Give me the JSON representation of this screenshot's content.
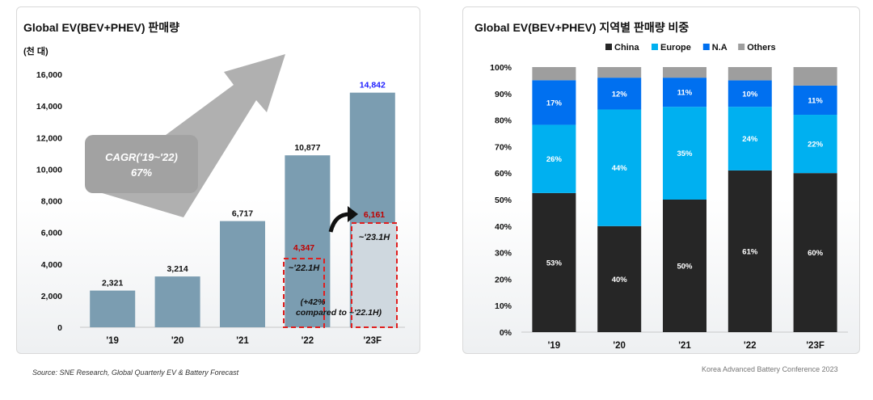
{
  "left_chart": {
    "title": "Global EV(BEV+PHEV) 판매량",
    "unit": "(천 대)",
    "cagr_label_1": "CAGR('19~'22)",
    "cagr_label_2": "67%",
    "h1_22_value": "4,347",
    "h1_22_label": "~'22.1H",
    "h1_23_value": "6,161",
    "h1_23_label": "~'23.1H",
    "growth_note_1": "(+42%",
    "growth_note_2": "compared to ~'22.1H)"
  },
  "right_chart": {
    "title": "Global EV(BEV+PHEV) 지역별 판매량 비중"
  },
  "source": "Source: SNE Research, Global Quarterly EV & Battery Forecast",
  "conference": "Korea Advanced Battery Conference 2023",
  "colors": {
    "bar": "#7b9db1",
    "forecast_value": "#1f1fff",
    "h1_value": "#c00000",
    "china": "#262626",
    "europe": "#00b0f0",
    "na": "#0070f0",
    "others": "#9e9e9e",
    "dashed_box": "#e01f1f"
  },
  "chart_data": [
    {
      "type": "bar",
      "categories": [
        "'19",
        "'20",
        "'21",
        "'22",
        "'23F"
      ],
      "values": [
        2321,
        3214,
        6717,
        10877,
        14842
      ],
      "value_labels": [
        "2,321",
        "3,214",
        "6,717",
        "10,877",
        "14,842"
      ],
      "ylim": [
        0,
        16000
      ],
      "yticks": [
        0,
        2000,
        4000,
        6000,
        8000,
        10000,
        12000,
        14000,
        16000
      ],
      "ytick_labels": [
        "0",
        "2,000",
        "4,000",
        "6,000",
        "8,000",
        "10,000",
        "12,000",
        "14,000",
        "16,000"
      ],
      "annotations": [
        {
          "category": "'22",
          "value": 4347
        },
        {
          "category": "'23F",
          "value": 6161
        }
      ],
      "grid": false
    },
    {
      "type": "bar",
      "stacked": true,
      "categories": [
        "'19",
        "'20",
        "'21",
        "'22",
        "'23F"
      ],
      "series": [
        {
          "name": "China",
          "values": [
            53,
            40,
            50,
            61,
            60
          ],
          "labels": [
            "53%",
            "40%",
            "50%",
            "61%",
            "60%"
          ]
        },
        {
          "name": "Europe",
          "values": [
            26,
            44,
            35,
            24,
            22
          ],
          "labels": [
            "26%",
            "44%",
            "35%",
            "24%",
            "22%"
          ]
        },
        {
          "name": "N.A",
          "values": [
            17,
            12,
            11,
            10,
            11
          ],
          "labels": [
            "17%",
            "12%",
            "11%",
            "10%",
            "11%"
          ]
        },
        {
          "name": "Others",
          "values": [
            5,
            4,
            4,
            5,
            7
          ]
        }
      ],
      "ylim": [
        0,
        100
      ],
      "yticks": [
        0,
        10,
        20,
        30,
        40,
        50,
        60,
        70,
        80,
        90,
        100
      ],
      "ytick_labels": [
        "0%",
        "10%",
        "20%",
        "30%",
        "40%",
        "50%",
        "60%",
        "70%",
        "80%",
        "90%",
        "100%"
      ],
      "legend": "top",
      "grid": false
    }
  ]
}
